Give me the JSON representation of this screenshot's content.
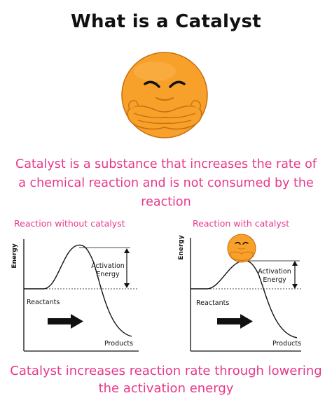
{
  "title": "What is a Catalyst",
  "definition": "Catalyst is a substance that increases the rate of a chemical reaction and is not consumed by the reaction",
  "panels": [
    {
      "title": "Reaction without catalyst",
      "y_label": "Energy",
      "energy_arrow_label_line1": "Activation",
      "energy_arrow_label_line2": "Energy",
      "reactants_label": "Reactants",
      "products_label": "Products",
      "has_catalyst": false
    },
    {
      "title": "Reaction with catalyst",
      "y_label": "Energy",
      "energy_arrow_label_line1": "Activation",
      "energy_arrow_label_line2": "Energy",
      "reactants_label": "Reactants",
      "products_label": "Products",
      "has_catalyst": true
    }
  ],
  "conclusion": "Catalyst increases reaction rate through lowering the activation energy",
  "colors": {
    "accent": "#e8388a",
    "mascot_fill": "#f7a12b",
    "mascot_outline": "#c86e10",
    "text": "#111111"
  },
  "icons": {
    "mascot": "smug-face-arms-crossed-icon",
    "forward_arrow": "arrow-right-icon",
    "double_arrow": "double-headed-arrow-icon"
  }
}
